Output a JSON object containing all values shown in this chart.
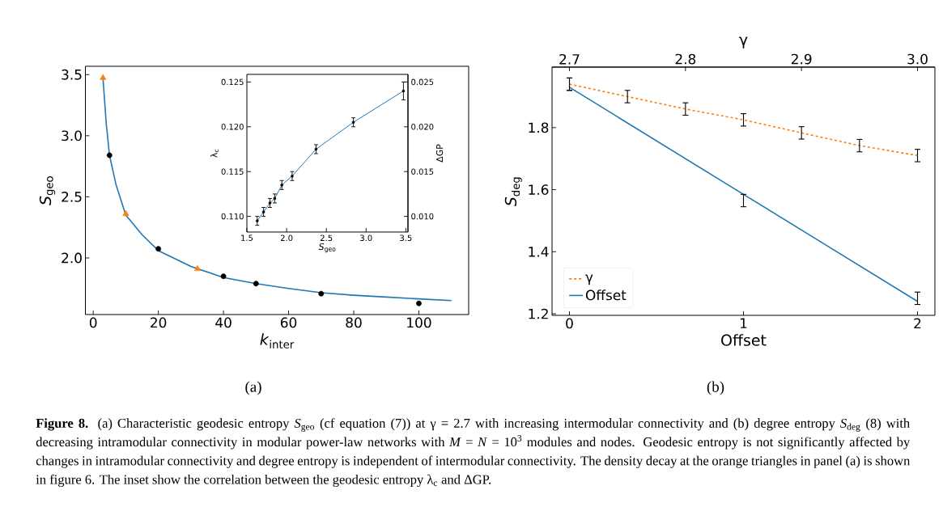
{
  "chart_data": [
    {
      "type": "line",
      "subtitle": "(a)",
      "xlabel": "*k*$_{inter}$",
      "ylabel": "*S*$_{geo}$",
      "xlim": [
        -2.4,
        115.3
      ],
      "ylim": [
        1.537,
        3.568
      ],
      "xticks": [
        0,
        20,
        40,
        60,
        80,
        100
      ],
      "yticks": [
        {
          "value": 2,
          "label": "2.0"
        },
        2.5,
        {
          "value": 3,
          "label": "3.0"
        },
        3.5
      ],
      "series": [
        {
          "color": "#1f77b4",
          "marker": "none",
          "x": [
            3,
            4,
            5,
            7,
            10,
            15,
            20,
            30,
            40,
            50,
            60,
            70,
            80,
            90,
            100,
            110
          ],
          "values": [
            3.47,
            3.1,
            2.84,
            2.6,
            2.35,
            2.19,
            2.06,
            1.93,
            1.84,
            1.79,
            1.75,
            1.715,
            1.695,
            1.68,
            1.665,
            1.651
          ]
        },
        {
          "type": "scatter",
          "color": "#000000",
          "marker": "circle",
          "x": [
            5,
            20,
            40,
            50,
            70,
            100
          ],
          "values": [
            2.84,
            2.075,
            1.85,
            1.79,
            1.708,
            1.628
          ]
        },
        {
          "type": "scatter",
          "color": "#ff7f0e",
          "marker": "triangle",
          "x": [
            3,
            10,
            32
          ],
          "values": [
            3.473,
            2.36,
            1.91
          ]
        }
      ],
      "annotations": [
        "**Figure 8.** (a) Characteristic geodesic entropy *S*$_{geo}$ (cf equation (7)) at γ = 2.7 with increasing intermodular connectivity and (b) degree entropy *S*$_{deg}$ (8) with decreasing intramodular connectivity in modular power-law networks with *M* = *N* = 10$^{3}$ modules and nodes. Geodesic entropy is not significantly affected by changes in intramodular connectivity and degree entropy is independent of intermodular connectivity. The density decay at the orange triangles in panel (a) is shown in figure 6. The inset show the correlation between the geodesic entropy λ$_{c}$ and ΔGP."
      ]
    },
    {
      "type": "line",
      "xlabel": "*S*$_{geo}$",
      "ylabel": "λ$_{c}$",
      "y2label": "ΔGP",
      "xlim": [
        1.5,
        3.527
      ],
      "ylim": [
        0.10825,
        0.12585
      ],
      "y2lim": [
        0.00825,
        0.02585
      ],
      "xticks": [
        1.5,
        {
          "value": 2,
          "label": "2.0"
        },
        2.5,
        {
          "value": 3,
          "label": "3.0"
        },
        3.5
      ],
      "yticks": [
        {
          "value": 0.11,
          "label": "0.110"
        },
        0.115,
        {
          "value": 0.12,
          "label": "0.120"
        },
        0.125
      ],
      "y2ticks": [
        {
          "value": 0.01,
          "label": "0.010"
        },
        0.015,
        {
          "value": 0.02,
          "label": "0.020"
        },
        0.025
      ],
      "series": [
        {
          "color": "#1f77b4",
          "marker": "none",
          "x": [
            1.63,
            1.71,
            1.79,
            1.85,
            1.94,
            2.07,
            2.37,
            2.84,
            3.47
          ],
          "values": [
            0.1095,
            0.1105,
            0.1115,
            0.112,
            0.1135,
            0.1145,
            0.1175,
            0.1205,
            0.124
          ]
        },
        {
          "type": "scatter",
          "color": "#000000",
          "marker": "circle",
          "x": [
            1.63,
            1.71,
            1.79,
            1.85,
            1.94,
            2.07,
            2.37,
            2.84,
            3.47
          ],
          "values": [
            0.1095,
            0.1105,
            0.1115,
            0.112,
            0.1135,
            0.1145,
            0.1175,
            0.1205,
            0.124
          ],
          "errors": [
            0.0005,
            0.0005,
            0.0005,
            0.0005,
            0.0005,
            0.0005,
            0.0005,
            0.0005,
            0.001
          ]
        }
      ]
    },
    {
      "type": "line",
      "subtitle": "(b)",
      "xlabel": "Offset",
      "x2label": "γ",
      "ylabel": "*S*$_{deg}$",
      "xlim": [
        -0.1,
        2.1
      ],
      "x2lim": [
        2.685,
        3.015
      ],
      "ylim": [
        1.195,
        1.995
      ],
      "xticks": [
        0,
        1,
        2
      ],
      "x2ticks": [
        2.7,
        2.8,
        2.9,
        {
          "value": 3,
          "label": "3.0"
        }
      ],
      "yticks": [
        1.2,
        1.4,
        1.6,
        1.8
      ],
      "legend": "bottom left",
      "series": [
        {
          "name": "γ",
          "axis": "x2",
          "color": "#ff7f0e",
          "line_style": "dashed",
          "marker": "none",
          "x": [
            2.7,
            2.75,
            2.8,
            2.85,
            2.9,
            2.95,
            3.0
          ],
          "values": [
            1.94,
            1.9,
            1.86,
            1.825,
            1.783,
            1.742,
            1.71
          ],
          "errors": [
            0.02,
            0.02,
            0.02,
            0.02,
            0.02,
            0.02,
            0.02
          ]
        },
        {
          "name": "Offset",
          "color": "#1f77b4",
          "line_style": "solid",
          "marker": "none",
          "x": [
            0,
            1,
            2
          ],
          "values": [
            1.93,
            1.585,
            1.24
          ],
          "errors": [
            [
              1.92,
              1.96
            ],
            [
              1.545,
              1.585
            ],
            [
              1.23,
              1.27
            ]
          ]
        }
      ]
    }
  ]
}
